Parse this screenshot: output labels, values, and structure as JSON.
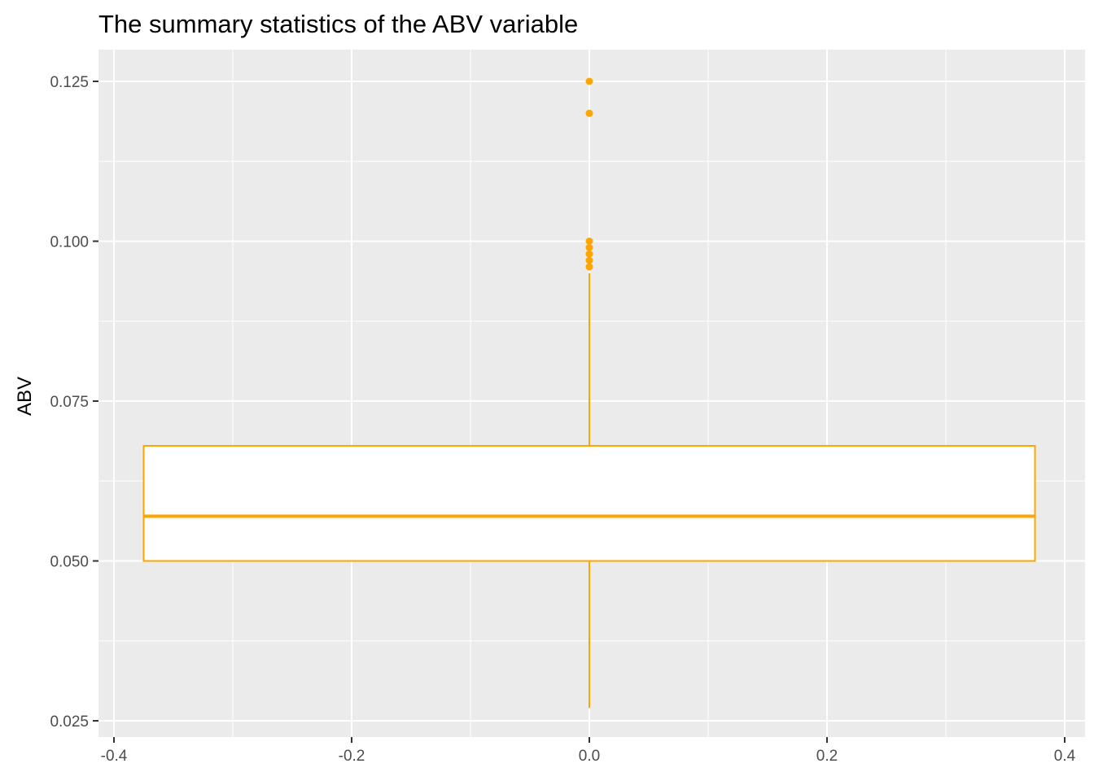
{
  "chart_data": {
    "type": "box",
    "title": "The summary statistics of the ABV variable",
    "xlabel": "",
    "ylabel": "ABV",
    "xlim": [
      -0.4,
      0.4
    ],
    "ylim": [
      0.025,
      0.125
    ],
    "x_ticks": [
      -0.4,
      -0.2,
      0.0,
      0.2,
      0.4
    ],
    "x_tick_labels": [
      "-0.4",
      "-0.2",
      "0.0",
      "0.2",
      "0.4"
    ],
    "y_ticks": [
      0.025,
      0.05,
      0.075,
      0.1,
      0.125
    ],
    "y_tick_labels": [
      "0.025",
      "0.050",
      "0.075",
      "0.100",
      "0.125"
    ],
    "grid": true,
    "color": "#FFA500",
    "panel_background": "#EBEBEB",
    "box": {
      "x_center": 0.0,
      "x_range": [
        -0.375,
        0.375
      ],
      "whisker_low": 0.027,
      "q1": 0.05,
      "median": 0.057,
      "q3": 0.068,
      "whisker_high": 0.095,
      "outliers": [
        0.096,
        0.097,
        0.098,
        0.099,
        0.1,
        0.12,
        0.125
      ]
    }
  }
}
